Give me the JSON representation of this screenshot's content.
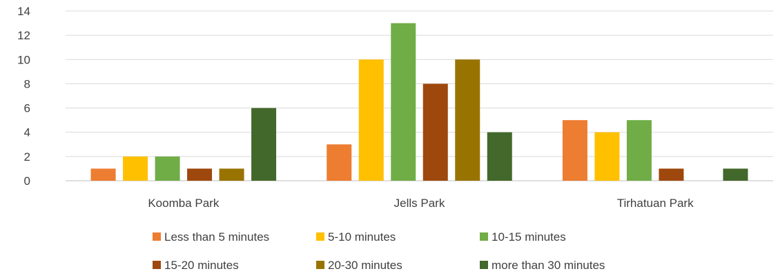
{
  "chart_data": {
    "type": "bar",
    "title": "",
    "xlabel": "",
    "ylabel": "",
    "ylim": [
      0,
      14
    ],
    "yticks": [
      0,
      2,
      4,
      6,
      8,
      10,
      12,
      14
    ],
    "grid": true,
    "legend_position": "bottom",
    "categories": [
      "Koomba Park",
      "Jells Park",
      "Tirhatuan Park"
    ],
    "series": [
      {
        "name": "Less than 5 minutes",
        "color": "#ED7D31",
        "values": [
          1,
          3,
          5
        ]
      },
      {
        "name": "5-10 minutes",
        "color": "#FFC000",
        "values": [
          2,
          10,
          4
        ]
      },
      {
        "name": "10-15 minutes",
        "color": "#70AD47",
        "values": [
          2,
          13,
          5
        ]
      },
      {
        "name": "15-20 minutes",
        "color": "#9E480E",
        "values": [
          1,
          8,
          1
        ]
      },
      {
        "name": "20-30 minutes",
        "color": "#997300",
        "values": [
          1,
          10,
          0
        ]
      },
      {
        "name": "more than 30 minutes",
        "color": "#43682B",
        "values": [
          6,
          4,
          1
        ]
      }
    ]
  }
}
